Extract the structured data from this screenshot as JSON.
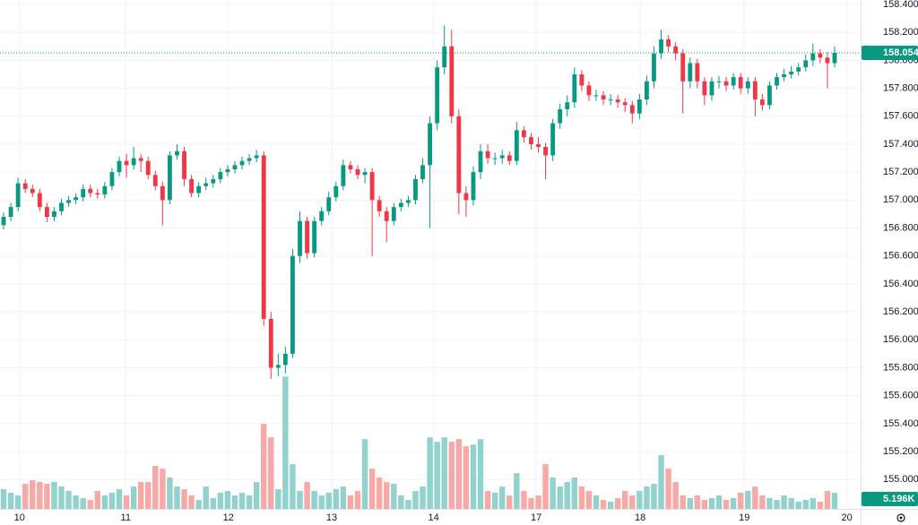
{
  "chart_data": {
    "type": "candlestick",
    "up_color": "#089981",
    "down_color": "#f23645",
    "volume_up_color": "#92d2cc",
    "volume_down_color": "#f7a9a7",
    "grid": true,
    "xlim": [
      -0.5,
      118.6
    ],
    "xticks": [
      {
        "value": 2.2,
        "label": "10"
      },
      {
        "value": 16.9,
        "label": "11"
      },
      {
        "value": 31.1,
        "label": "12"
      },
      {
        "value": 45.4,
        "label": "13"
      },
      {
        "value": 59.5,
        "label": "14"
      },
      {
        "value": 73.7,
        "label": "17"
      },
      {
        "value": 88.1,
        "label": "18"
      },
      {
        "value": 102.5,
        "label": "19"
      },
      {
        "value": 116.7,
        "label": "20"
      }
    ],
    "ylim": [
      154.79,
      158.432
    ],
    "yticks": [
      {
        "value": 158.4,
        "label": "158.400"
      },
      {
        "value": 158.2,
        "label": "158.200"
      },
      {
        "value": 158.0,
        "label": "158.000"
      },
      {
        "value": 157.8,
        "label": "157.800"
      },
      {
        "value": 157.6,
        "label": "157.600"
      },
      {
        "value": 157.4,
        "label": "157.400"
      },
      {
        "value": 157.2,
        "label": "157.200"
      },
      {
        "value": 157.0,
        "label": "157.000"
      },
      {
        "value": 156.8,
        "label": "156.800"
      },
      {
        "value": 156.6,
        "label": "156.600"
      },
      {
        "value": 156.4,
        "label": "156.400"
      },
      {
        "value": 156.2,
        "label": "156.200"
      },
      {
        "value": 156.0,
        "label": "156.000"
      },
      {
        "value": 155.8,
        "label": "155.800"
      },
      {
        "value": 155.6,
        "label": "155.600"
      },
      {
        "value": 155.4,
        "label": "155.400"
      },
      {
        "value": 155.2,
        "label": "155.200"
      },
      {
        "value": 155.0,
        "label": "155.000"
      }
    ],
    "open": [
      156.82,
      156.88,
      156.95,
      157.12,
      157.08,
      157.05,
      156.95,
      156.88,
      156.92,
      156.98,
      157.0,
      157.02,
      157.08,
      157.05,
      157.04,
      157.1,
      157.2,
      157.28,
      157.25,
      157.3,
      157.28,
      157.18,
      157.1,
      157.0,
      157.32,
      157.35,
      157.15,
      157.05,
      157.1,
      157.12,
      157.15,
      157.2,
      157.22,
      157.25,
      157.28,
      157.3,
      157.32,
      156.15,
      155.8,
      155.82,
      155.9,
      156.6,
      156.85,
      156.62,
      156.85,
      156.92,
      157.02,
      157.1,
      157.25,
      157.22,
      157.18,
      157.2,
      157.0,
      156.92,
      156.85,
      156.95,
      156.98,
      157.0,
      157.15,
      157.25,
      157.55,
      157.95,
      158.1,
      157.6,
      157.05,
      157.0,
      157.2,
      157.35,
      157.3,
      157.3,
      157.32,
      157.28,
      157.5,
      157.45,
      157.4,
      157.38,
      157.32,
      157.55,
      157.65,
      157.7,
      157.9,
      157.82,
      157.75,
      157.75,
      157.72,
      157.72,
      157.7,
      157.68,
      157.62,
      157.72,
      157.85,
      158.05,
      158.15,
      158.1,
      158.05,
      157.85,
      157.98,
      157.85,
      157.75,
      157.85,
      157.85,
      157.82,
      157.88,
      157.8,
      157.85,
      157.72,
      157.68,
      157.82,
      157.88,
      157.9,
      157.92,
      157.95,
      158.0,
      158.05,
      158.02,
      157.98
    ],
    "high": [
      156.91,
      156.98,
      157.16,
      157.15,
      157.11,
      157.08,
      156.98,
      156.95,
      157.01,
      157.03,
      157.05,
      157.11,
      157.11,
      157.08,
      157.13,
      157.23,
      157.31,
      157.33,
      157.38,
      157.33,
      157.31,
      157.21,
      157.13,
      157.35,
      157.4,
      157.38,
      157.18,
      157.13,
      157.16,
      157.18,
      157.23,
      157.25,
      157.28,
      157.31,
      157.33,
      157.36,
      157.35,
      156.2,
      155.9,
      155.95,
      156.65,
      156.92,
      156.88,
      156.88,
      156.95,
      157.06,
      157.13,
      157.29,
      157.28,
      157.25,
      157.23,
      157.23,
      157.03,
      156.95,
      156.98,
      157.01,
      157.03,
      157.18,
      157.3,
      157.6,
      158.0,
      158.25,
      158.22,
      157.65,
      157.1,
      157.24,
      157.4,
      157.4,
      157.34,
      157.36,
      157.35,
      157.56,
      157.53,
      157.48,
      157.45,
      157.41,
      157.58,
      157.69,
      157.75,
      157.95,
      157.93,
      157.85,
      157.79,
      157.78,
      157.76,
      157.75,
      157.73,
      157.71,
      157.76,
      157.89,
      158.1,
      158.22,
      158.18,
      158.13,
      158.08,
      158.02,
      158.01,
      157.88,
      157.88,
      157.89,
      157.88,
      157.91,
      157.91,
      157.88,
      157.88,
      157.76,
      157.85,
      157.91,
      157.94,
      157.96,
      157.98,
      158.04,
      158.12,
      158.08,
      158.06,
      158.1
    ],
    "low": [
      156.79,
      156.85,
      156.92,
      157.05,
      157.02,
      156.92,
      156.84,
      156.85,
      156.89,
      156.95,
      156.97,
      156.99,
      157.02,
      157.01,
      157.01,
      157.07,
      157.17,
      157.16,
      157.22,
      157.2,
      157.15,
      157.07,
      156.82,
      156.97,
      157.29,
      157.1,
      157.02,
      157.02,
      157.07,
      157.09,
      157.12,
      157.17,
      157.19,
      157.22,
      157.25,
      157.27,
      156.1,
      155.72,
      155.74,
      155.76,
      155.87,
      156.55,
      156.58,
      156.59,
      156.82,
      156.89,
      156.99,
      157.07,
      157.19,
      157.15,
      157.12,
      156.6,
      156.88,
      156.7,
      156.82,
      156.92,
      156.95,
      156.97,
      157.12,
      156.8,
      157.5,
      157.9,
      157.55,
      156.9,
      156.88,
      156.96,
      157.15,
      157.26,
      157.25,
      157.26,
      157.25,
      157.25,
      157.41,
      157.36,
      157.34,
      157.15,
      157.28,
      157.51,
      157.6,
      157.66,
      157.78,
      157.71,
      157.71,
      157.68,
      157.68,
      157.66,
      157.63,
      157.55,
      157.58,
      157.68,
      157.8,
      158.01,
      158.06,
      158.0,
      157.62,
      157.8,
      157.8,
      157.68,
      157.71,
      157.8,
      157.78,
      157.79,
      157.76,
      157.76,
      157.6,
      157.64,
      157.65,
      157.79,
      157.85,
      157.87,
      157.89,
      157.92,
      157.96,
      157.98,
      157.8,
      157.95
    ],
    "close": [
      156.88,
      156.95,
      157.12,
      157.08,
      157.05,
      156.95,
      156.88,
      156.92,
      156.98,
      157.0,
      157.02,
      157.08,
      157.05,
      157.04,
      157.1,
      157.2,
      157.28,
      157.25,
      157.3,
      157.28,
      157.18,
      157.1,
      157.0,
      157.32,
      157.35,
      157.15,
      157.05,
      157.1,
      157.12,
      157.15,
      157.2,
      157.22,
      157.25,
      157.28,
      157.3,
      157.32,
      156.15,
      155.8,
      155.82,
      155.9,
      156.6,
      156.85,
      156.62,
      156.85,
      156.92,
      157.02,
      157.1,
      157.25,
      157.22,
      157.18,
      157.2,
      157.0,
      156.92,
      156.85,
      156.95,
      156.98,
      157.0,
      157.15,
      157.25,
      157.55,
      157.95,
      158.1,
      157.6,
      157.05,
      157.0,
      157.2,
      157.35,
      157.3,
      157.3,
      157.32,
      157.28,
      157.5,
      157.45,
      157.4,
      157.38,
      157.32,
      157.55,
      157.65,
      157.7,
      157.9,
      157.82,
      157.75,
      157.75,
      157.72,
      157.72,
      157.7,
      157.68,
      157.62,
      157.72,
      157.85,
      158.05,
      158.15,
      158.1,
      158.05,
      157.85,
      157.98,
      157.85,
      157.75,
      157.85,
      157.85,
      157.82,
      157.88,
      157.8,
      157.85,
      157.72,
      157.68,
      157.82,
      157.88,
      157.9,
      157.92,
      157.95,
      158.0,
      158.05,
      158.02,
      157.98,
      158.054
    ],
    "volume": {
      "ylim": [
        0,
        165000
      ],
      "values": [
        6380,
        5220,
        4350,
        8120,
        9280,
        8700,
        8120,
        8700,
        7250,
        5800,
        4350,
        3480,
        2900,
        5800,
        4350,
        5220,
        6380,
        4350,
        7250,
        8700,
        8700,
        13920,
        13050,
        10150,
        7250,
        6380,
        4350,
        2900,
        7250,
        3480,
        5220,
        5800,
        4350,
        5220,
        4350,
        8700,
        27550,
        23200,
        6380,
        42920,
        14500,
        5800,
        8700,
        5800,
        4350,
        5220,
        6380,
        7250,
        4350,
        5800,
        22620,
        13050,
        10150,
        8700,
        8120,
        4350,
        2900,
        5800,
        7250,
        23200,
        21750,
        23200,
        21750,
        22620,
        20300,
        20880,
        22620,
        5800,
        5220,
        7250,
        4350,
        11600,
        5800,
        3480,
        4350,
        14500,
        10150,
        7250,
        8700,
        10150,
        7250,
        5800,
        4350,
        2900,
        2320,
        3480,
        5800,
        4350,
        5800,
        7250,
        8120,
        17400,
        13050,
        8700,
        4350,
        3480,
        4350,
        2900,
        3480,
        4350,
        2900,
        3480,
        5220,
        5800,
        7250,
        4350,
        3480,
        2900,
        4350,
        3480,
        2320,
        2900,
        3480,
        2320,
        5800,
        5196
      ],
      "value_labels": {
        "115": "5.196K"
      }
    }
  }
}
